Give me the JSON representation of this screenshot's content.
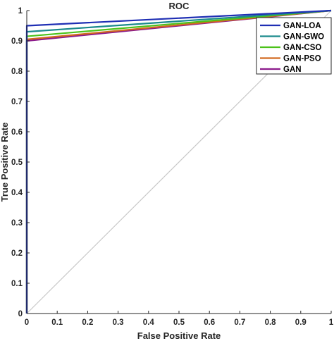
{
  "chart_data": {
    "type": "line",
    "title": "ROC",
    "xlabel": "False Positive Rate",
    "ylabel": "True Positive Rate",
    "xlim": [
      0,
      1
    ],
    "ylim": [
      0,
      1
    ],
    "grid": false,
    "legend_position": "top-right",
    "x_ticks": [
      "0",
      "0.1",
      "0.2",
      "0.3",
      "0.4",
      "0.5",
      "0.6",
      "0.7",
      "0.8",
      "0.9",
      "1"
    ],
    "y_ticks": [
      "0",
      "0.1",
      "0.2",
      "0.3",
      "0.4",
      "0.5",
      "0.6",
      "0.7",
      "0.8",
      "0.9",
      "1"
    ],
    "reference_line": {
      "x": [
        0,
        1
      ],
      "y": [
        0,
        1
      ],
      "color": "#c8c8c8"
    },
    "series": [
      {
        "name": "GAN-LOA",
        "color": "#1f2fb4",
        "x": [
          0,
          0,
          1
        ],
        "y": [
          0,
          0.95,
          1
        ]
      },
      {
        "name": "GAN-GWO",
        "color": "#1a8a8c",
        "x": [
          0,
          0,
          1
        ],
        "y": [
          0,
          0.93,
          1
        ]
      },
      {
        "name": "GAN-CSO",
        "color": "#4cc21a",
        "x": [
          0,
          0,
          1
        ],
        "y": [
          0,
          0.915,
          1
        ]
      },
      {
        "name": "GAN-PSO",
        "color": "#d2691e",
        "x": [
          0,
          0,
          1
        ],
        "y": [
          0,
          0.905,
          1
        ]
      },
      {
        "name": "GAN",
        "color": "#8b1a8b",
        "x": [
          0,
          0,
          1
        ],
        "y": [
          0,
          0.9,
          1
        ]
      }
    ]
  }
}
